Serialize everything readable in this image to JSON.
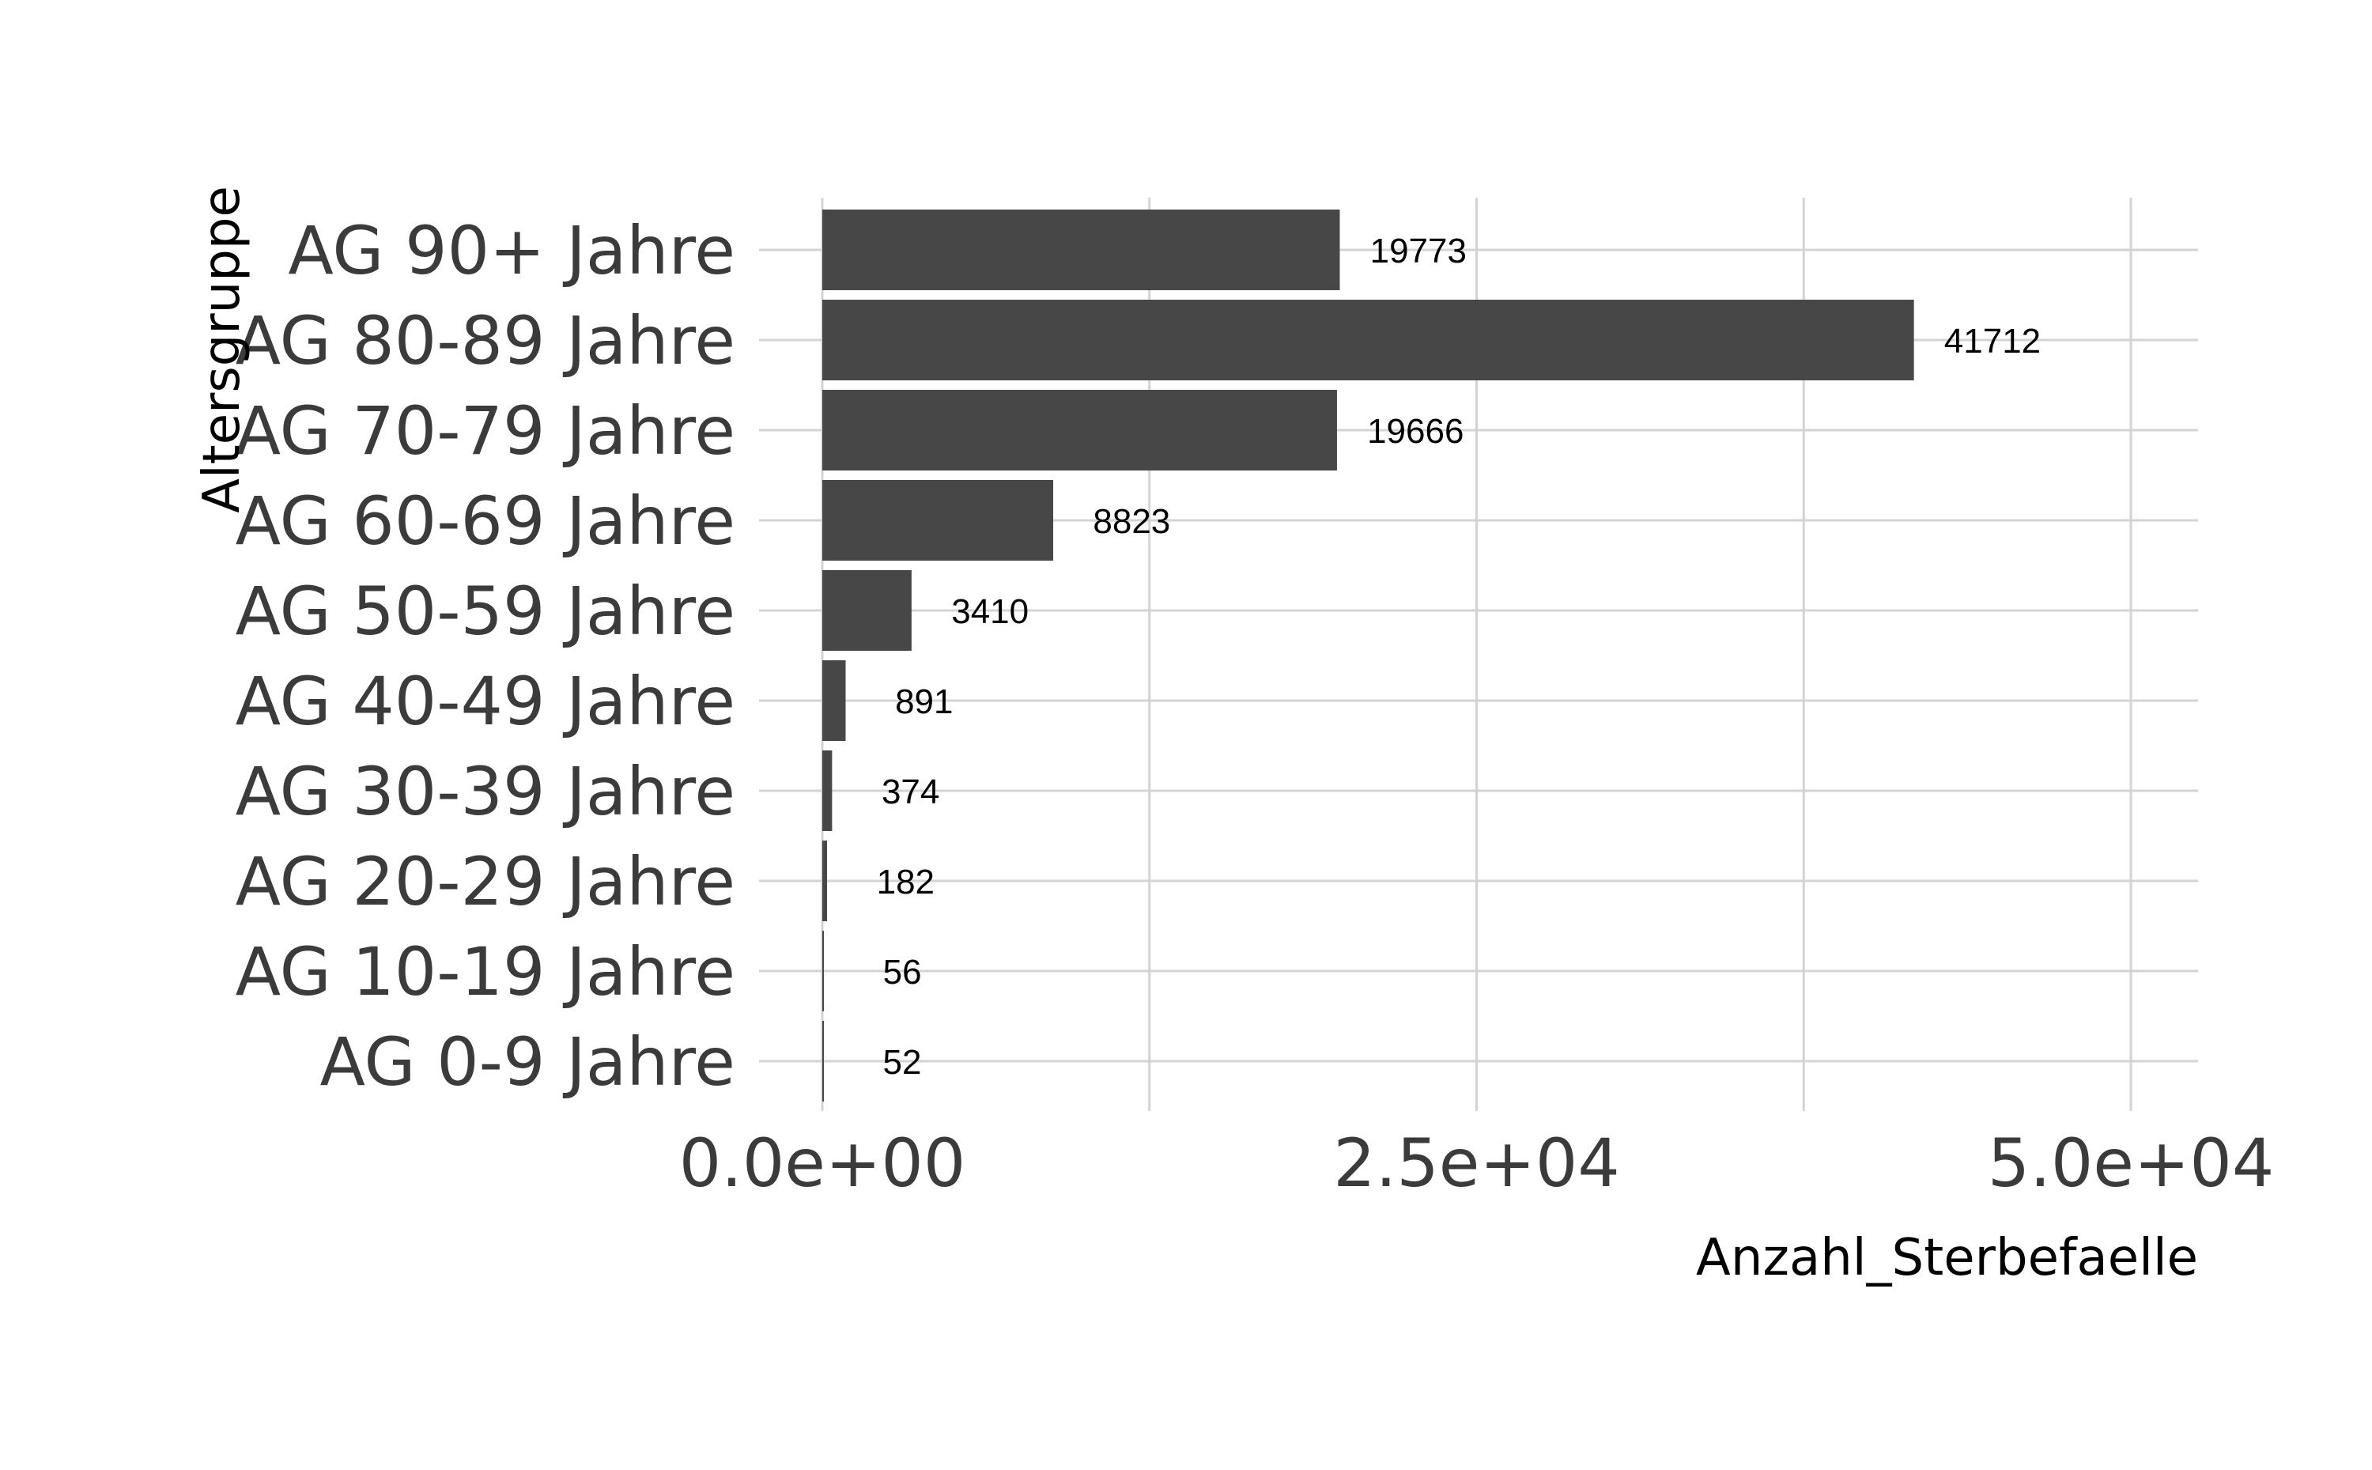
{
  "chart_data": {
    "type": "bar",
    "orientation": "horizontal",
    "categories": [
      "AG 0-9 Jahre",
      "AG 10-19 Jahre",
      "AG 20-29 Jahre",
      "AG 30-39 Jahre",
      "AG 40-49 Jahre",
      "AG 50-59 Jahre",
      "AG 60-69 Jahre",
      "AG 70-79 Jahre",
      "AG 80-89 Jahre",
      "AG 90+ Jahre"
    ],
    "values": [
      52,
      56,
      182,
      374,
      891,
      3410,
      8823,
      19666,
      41712,
      19773
    ],
    "data_labels": [
      "52",
      "56",
      "182",
      "374",
      "891",
      "3410",
      "8823",
      "19666",
      "41712",
      "19773"
    ],
    "title": "",
    "xlabel": "Anzahl_Sterbefaelle",
    "ylabel": "Altersgruppe",
    "xlim": [
      0,
      52500
    ],
    "x_ticks": [
      0,
      25000,
      50000
    ],
    "x_tick_labels": [
      "0.0e+00",
      "2.5e+04",
      "5.0e+04"
    ],
    "grid": true,
    "legend": "none",
    "bar_color": "#474747",
    "grid_color": "#d3d3d3",
    "label_offset": 3000
  }
}
